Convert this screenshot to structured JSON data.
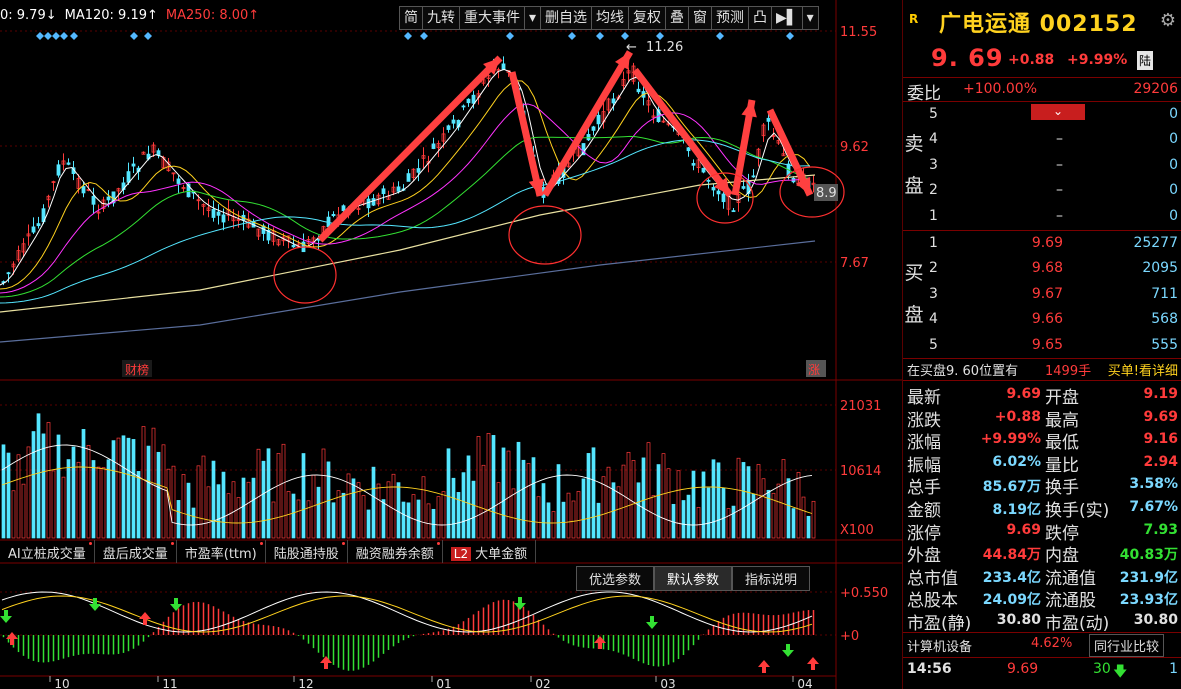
{
  "chart": {
    "ma_strip": [
      {
        "text": "0: 9.79↓",
        "color": "#ffffff"
      },
      {
        "text": "MA120: 9.19↑",
        "color": "#ffffff"
      },
      {
        "text": "MA250: 8.00↑",
        "color": "#ff3b3b"
      }
    ],
    "toolbar": [
      "简",
      "九转",
      "重大事件",
      "▾",
      "删自选",
      "均线",
      "复权",
      "叠",
      "窗",
      "预测",
      "凸",
      "▶▌",
      "▾"
    ],
    "price_axis": [
      "11.55",
      "9.62",
      "7.67"
    ],
    "volume_axis": [
      "21031",
      "10614",
      "X100"
    ],
    "macd_axis": [
      "+0.550",
      "+0"
    ],
    "high_label": "11.26",
    "last_price_tag": "8.9",
    "marker_cai": "财榜",
    "marker_zhang": "涨",
    "month_labels": [
      "10",
      "11",
      "12",
      "01",
      "02",
      "03",
      "04"
    ],
    "indicator_tabs": [
      "AI立桩成交量",
      "盘后成交量",
      "市盈率(ttm)",
      "陆股通持股",
      "融资融券余额",
      "大单金额"
    ],
    "l2_badge": "L2",
    "param_tabs": [
      "优选参数",
      "默认参数",
      "指标说明"
    ]
  },
  "stock": {
    "logo": "R",
    "name": "广电运通 002152",
    "price": "9. 69",
    "change": "+0.88",
    "change_pct": "+9.99%",
    "badge": "陆",
    "weibi_label": "委比",
    "weibi_value": "+100.00%",
    "weibi_count": "29206"
  },
  "orderbook": {
    "sell_label": [
      "卖",
      "盘"
    ],
    "buy_label": [
      "买",
      "盘"
    ],
    "sell": [
      {
        "level": "5",
        "price": "",
        "vol": "0"
      },
      {
        "level": "4",
        "price": "–",
        "vol": "0"
      },
      {
        "level": "3",
        "price": "–",
        "vol": "0"
      },
      {
        "level": "2",
        "price": "–",
        "vol": "0"
      },
      {
        "level": "1",
        "price": "–",
        "vol": "0"
      }
    ],
    "buy": [
      {
        "level": "1",
        "price": "9.69",
        "vol": "25277"
      },
      {
        "level": "2",
        "price": "9.68",
        "vol": "2095"
      },
      {
        "level": "3",
        "price": "9.67",
        "vol": "711"
      },
      {
        "level": "4",
        "price": "9.66",
        "vol": "568"
      },
      {
        "level": "5",
        "price": "9.65",
        "vol": "555"
      }
    ],
    "notice_left": "在买盘9. 60位置有",
    "notice_mid": "1499手",
    "notice_right": "买单!看详细"
  },
  "quote_table": [
    {
      "l1": "最新",
      "v1": "9.69",
      "c1": "red",
      "l2": "开盘",
      "v2": "9.19",
      "c2": "red"
    },
    {
      "l1": "涨跌",
      "v1": "+0.88",
      "c1": "red",
      "l2": "最高",
      "v2": "9.69",
      "c2": "red"
    },
    {
      "l1": "涨幅",
      "v1": "+9.99%",
      "c1": "red",
      "l2": "最低",
      "v2": "9.16",
      "c2": "red"
    },
    {
      "l1": "振幅",
      "v1": "6.02%",
      "c1": "cyan",
      "l2": "量比",
      "v2": "2.94",
      "c2": "red"
    },
    {
      "l1": "总手",
      "v1": "85.67万",
      "c1": "cyan",
      "l2": "换手",
      "v2": "3.58%",
      "c2": "cyan"
    },
    {
      "l1": "金额",
      "v1": "8.19亿",
      "c1": "cyan",
      "l2": "换手(实)",
      "v2": "7.67%",
      "c2": "cyan"
    },
    {
      "l1": "涨停",
      "v1": "9.69",
      "c1": "red",
      "l2": "跌停",
      "v2": "7.93",
      "c2": "green"
    },
    {
      "l1": "外盘",
      "v1": "44.84万",
      "c1": "red",
      "l2": "内盘",
      "v2": "40.83万",
      "c2": "green"
    },
    {
      "l1": "总市值",
      "v1": "233.4亿",
      "c1": "cyan",
      "l2": "流通值",
      "v2": "231.9亿",
      "c2": "cyan"
    },
    {
      "l1": "总股本",
      "v1": "24.09亿",
      "c1": "cyan",
      "l2": "流通股",
      "v2": "23.93亿",
      "c2": "cyan"
    },
    {
      "l1": "市盈(静)",
      "v1": "30.80",
      "c1": "white",
      "l2": "市盈(动)",
      "v2": "30.80",
      "c2": "white"
    }
  ],
  "sector": {
    "name": "计算机设备",
    "pct": "4.62%",
    "button": "同行业比较"
  },
  "tick": {
    "time": "14:56",
    "price": "9.69",
    "vol": "30",
    "extra": "1"
  },
  "colors": {
    "up": "#ff3b3b",
    "down": "#54e6ff",
    "accent": "#ffd21f"
  }
}
